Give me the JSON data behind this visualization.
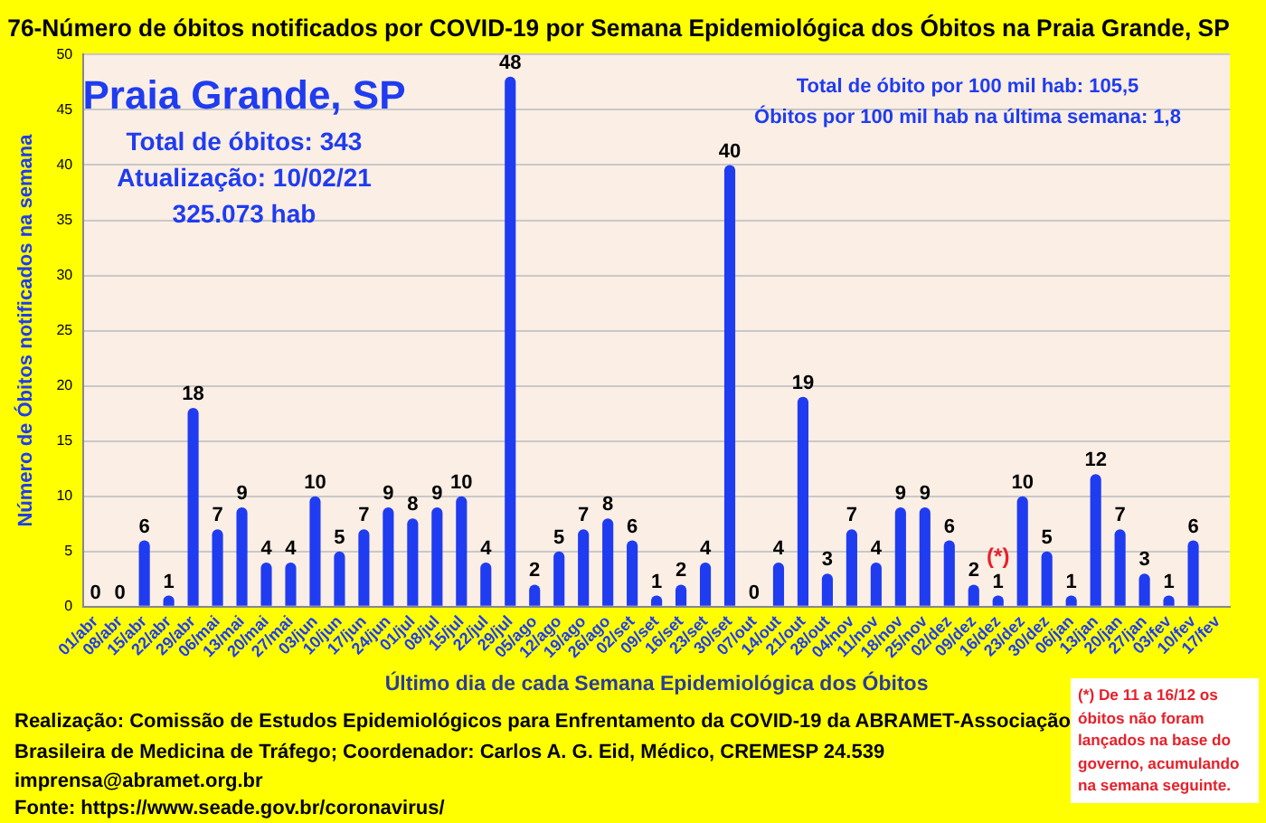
{
  "chart_data": {
    "type": "bar",
    "title": "76-Número de óbitos notificados por COVID-19 por Semana Epidemiológica dos Óbitos na Praia Grande, SP",
    "xlabel": "Último dia de cada Semana Epidemiológica dos Óbitos",
    "ylabel": "Número de Óbitos notificados na semana",
    "categories": [
      "01/abr",
      "08/abr",
      "15/abr",
      "22/abr",
      "29/abr",
      "06/mai",
      "13/mai",
      "20/mai",
      "27/mai",
      "03/jun",
      "10/jun",
      "17/jun",
      "24/jun",
      "01/jul",
      "08/jul",
      "15/jul",
      "22/jul",
      "29/jul",
      "05/ago",
      "12/ago",
      "19/ago",
      "26/ago",
      "02/set",
      "09/set",
      "16/set",
      "23/set",
      "30/set",
      "07/out",
      "14/out",
      "21/out",
      "28/out",
      "04/nov",
      "11/nov",
      "18/nov",
      "25/nov",
      "02/dez",
      "09/dez",
      "16/dez",
      "23/dez",
      "30/dez",
      "06/jan",
      "13/jan",
      "20/jan",
      "27/jan",
      "03/fev",
      "10/fev",
      "17/fev"
    ],
    "values": [
      0,
      0,
      6,
      1,
      18,
      7,
      9,
      4,
      4,
      10,
      5,
      7,
      9,
      8,
      9,
      10,
      4,
      48,
      2,
      5,
      7,
      8,
      6,
      1,
      2,
      4,
      40,
      0,
      4,
      19,
      3,
      7,
      4,
      9,
      9,
      6,
      2,
      1,
      10,
      5,
      1,
      12,
      7,
      3,
      1,
      6,
      null
    ],
    "color": "#1f3cf0",
    "ylim": [
      0,
      50
    ],
    "yticks": [
      0,
      5,
      10,
      15,
      20,
      25,
      30,
      35,
      40,
      45,
      50
    ],
    "grid": "y",
    "legend": false,
    "data_labels": true,
    "annotations": [
      "Praia Grande, SP",
      "Total de óbitos: 343",
      "Atualização: 10/02/21",
      "325.073 hab",
      "Total de óbito por 100 mil hab: 105,5",
      "Óbitos por 100 mil hab na última semana: 1,8",
      "Realização: Comissão de Estudos Epidemiológicos para Enfrentamento da COVID-19 da ABRAMET-Associação Brasileira de Medicina de Tráfego; Coordenador: Carlos A. G. Eid, Médico, CREMESP 24.539",
      "imprensa@abramet.org.br",
      "Fonte: https://www.seade.gov.br/coronavirus/",
      "(*) De 11 a 16/12 os óbitos não foram lançados na base do governo, acumulando na semana seguinte.",
      {
        "text": "(*)",
        "x": "16/dez",
        "y": 1
      }
    ]
  }
}
